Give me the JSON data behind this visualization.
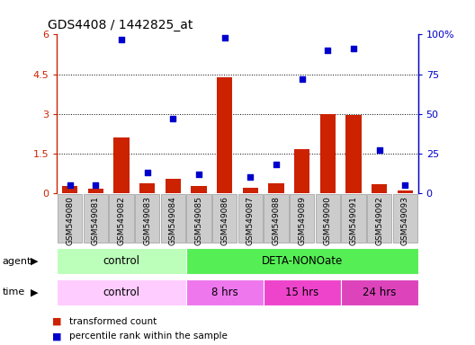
{
  "title": "GDS4408 / 1442825_at",
  "samples": [
    "GSM549080",
    "GSM549081",
    "GSM549082",
    "GSM549083",
    "GSM549084",
    "GSM549085",
    "GSM549086",
    "GSM549087",
    "GSM549088",
    "GSM549089",
    "GSM549090",
    "GSM549091",
    "GSM549092",
    "GSM549093"
  ],
  "bar_values": [
    0.28,
    0.18,
    2.1,
    0.38,
    0.55,
    0.28,
    4.4,
    0.22,
    0.38,
    1.65,
    3.0,
    2.95,
    0.35,
    0.12
  ],
  "dot_values_pct": [
    5,
    5,
    97,
    13,
    47,
    12,
    98,
    10,
    18,
    72,
    90,
    91,
    27,
    5
  ],
  "bar_color": "#cc2200",
  "dot_color": "#0000cc",
  "ylim_left": [
    0,
    6
  ],
  "ylim_right": [
    0,
    100
  ],
  "yticks_left": [
    0,
    1.5,
    3.0,
    4.5,
    6.0
  ],
  "yticks_right": [
    0,
    25,
    50,
    75,
    100
  ],
  "ytick_labels_left": [
    "0",
    "1.5",
    "3",
    "4.5",
    "6"
  ],
  "ytick_labels_right": [
    "0",
    "25",
    "50",
    "75",
    "100%"
  ],
  "hlines": [
    1.5,
    3.0,
    4.5
  ],
  "agent_groups": [
    {
      "label": "control",
      "start": 0,
      "end": 5,
      "color": "#bbffbb"
    },
    {
      "label": "DETA-NONOate",
      "start": 5,
      "end": 14,
      "color": "#55ee55"
    }
  ],
  "time_groups": [
    {
      "label": "control",
      "start": 0,
      "end": 5,
      "color": "#ffccff"
    },
    {
      "label": "8 hrs",
      "start": 5,
      "end": 8,
      "color": "#ee77ee"
    },
    {
      "label": "15 hrs",
      "start": 8,
      "end": 11,
      "color": "#ee44cc"
    },
    {
      "label": "24 hrs",
      "start": 11,
      "end": 14,
      "color": "#dd44bb"
    }
  ],
  "legend_bar_label": "transformed count",
  "legend_dot_label": "percentile rank within the sample",
  "xtick_bg": "#cccccc",
  "xtick_edge": "#999999",
  "plot_bg": "#ffffff",
  "border_color": "#000000"
}
